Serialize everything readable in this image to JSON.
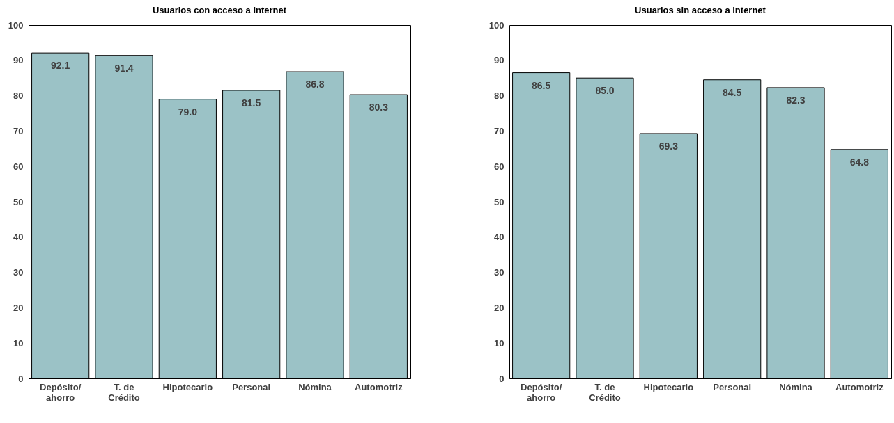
{
  "chart_data": [
    {
      "type": "bar",
      "title": "Usuarios con acceso a internet",
      "categories": [
        "Depósito/\nahorro",
        "T. de\nCrédito",
        "Hipotecario",
        "Personal",
        "Nómina",
        "Automotriz"
      ],
      "values": [
        92.1,
        91.4,
        79.0,
        81.5,
        86.8,
        80.3
      ],
      "value_labels": [
        "92.1",
        "91.4",
        "79.0",
        "81.5",
        "86.8",
        "80.3"
      ],
      "color": "#9bc2c6",
      "ylim": [
        0,
        100
      ],
      "yticks": [
        0,
        10,
        20,
        30,
        40,
        50,
        60,
        70,
        80,
        90,
        100
      ],
      "grid": false
    },
    {
      "type": "bar",
      "title": "Usuarios sin acceso a internet",
      "categories": [
        "Depósito/\nahorro",
        "T. de\nCrédito",
        "Hipotecario",
        "Personal",
        "Nómina",
        "Automotriz"
      ],
      "values": [
        86.5,
        85.0,
        69.3,
        84.5,
        82.3,
        64.8
      ],
      "value_labels": [
        "86.5",
        "85.0",
        "69.3",
        "84.5",
        "82.3",
        "64.8"
      ],
      "color": "#9bc2c6",
      "ylim": [
        0,
        100
      ],
      "yticks": [
        0,
        10,
        20,
        30,
        40,
        50,
        60,
        70,
        80,
        90,
        100
      ],
      "grid": false
    }
  ]
}
